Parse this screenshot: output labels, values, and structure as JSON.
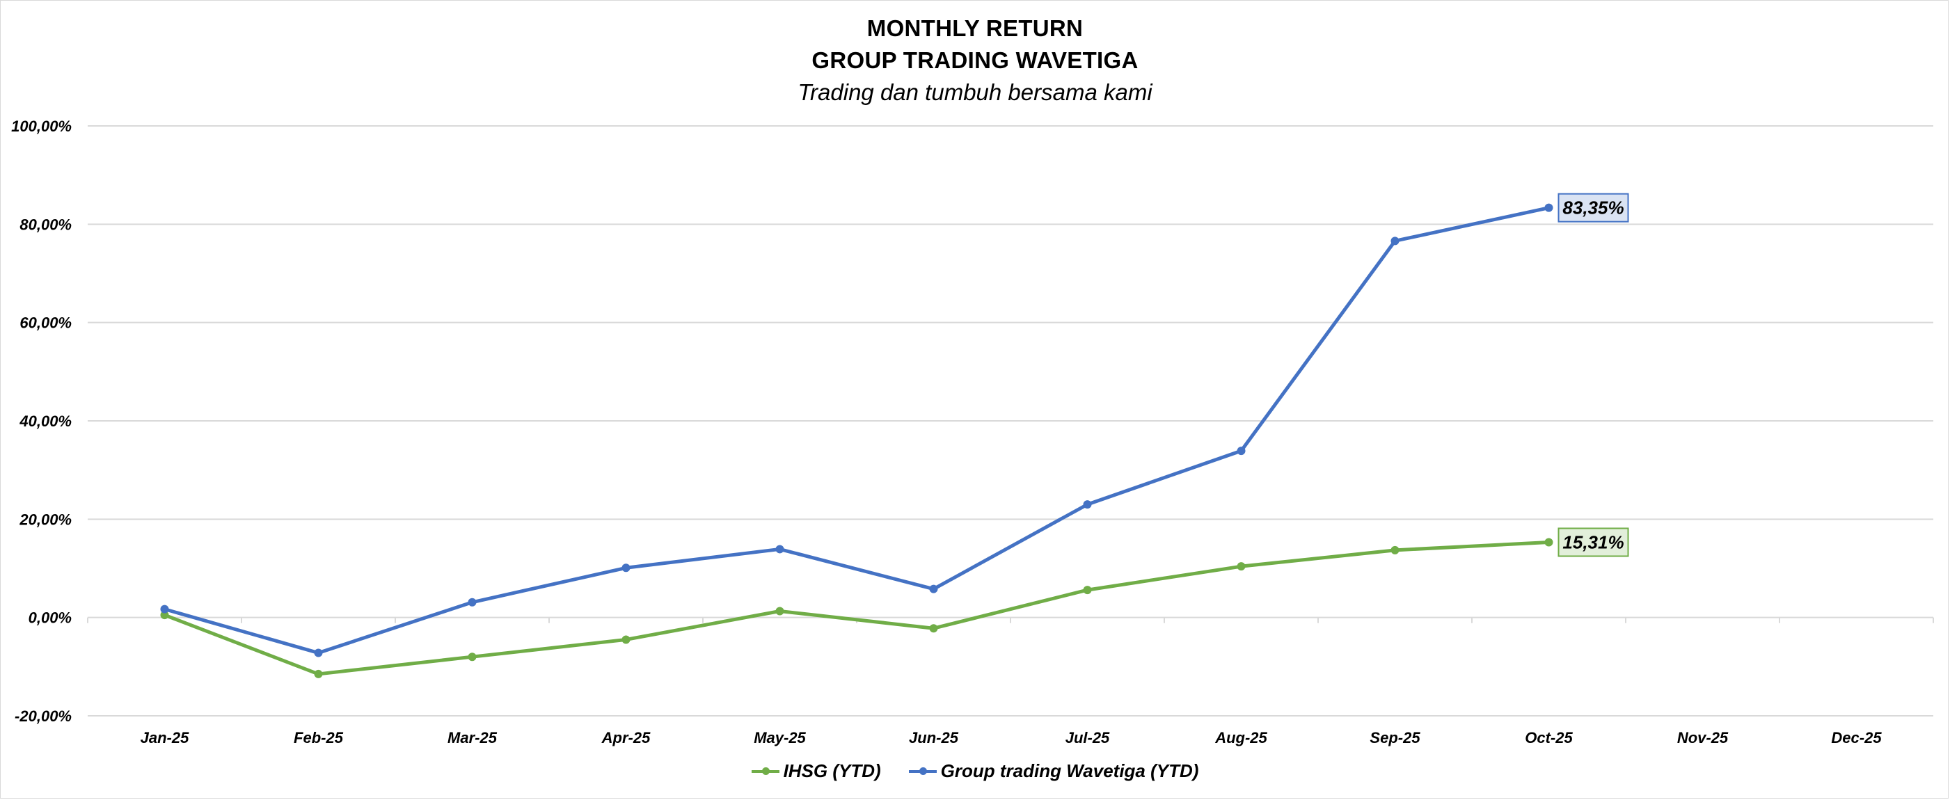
{
  "chart_data": {
    "type": "line",
    "title": "MONTHLY RETURN",
    "title_line2": "GROUP TRADING WAVETIGA",
    "subtitle": "Trading dan tumbuh bersama kami",
    "categories": [
      "Jan-25",
      "Feb-25",
      "Mar-25",
      "Apr-25",
      "May-25",
      "Jun-25",
      "Jul-25",
      "Aug-25",
      "Sep-25",
      "Oct-25",
      "Nov-25",
      "Dec-25"
    ],
    "y_ticks": [
      "-20,00%",
      "0,00%",
      "20,00%",
      "40,00%",
      "60,00%",
      "80,00%",
      "100,00%"
    ],
    "ylim": [
      -20,
      100
    ],
    "grid": "horizontal",
    "legend_position": "bottom",
    "series": [
      {
        "name": "IHSG (YTD)",
        "color": "#70ad47",
        "values": [
          0.5,
          -11.5,
          -8.0,
          -4.5,
          1.3,
          -2.2,
          5.6,
          10.4,
          13.7,
          15.31,
          null,
          null
        ],
        "end_label": "15,31%",
        "label_bg": "#e2efda",
        "label_border": "#70ad47"
      },
      {
        "name": "Group trading Wavetiga (YTD)",
        "color": "#4472c4",
        "values": [
          1.7,
          -7.2,
          3.1,
          10.1,
          13.9,
          5.8,
          23.0,
          33.9,
          76.6,
          83.35,
          null,
          null
        ],
        "end_label": "83,35%",
        "label_bg": "#dae3f3",
        "label_border": "#4472c4"
      }
    ]
  }
}
